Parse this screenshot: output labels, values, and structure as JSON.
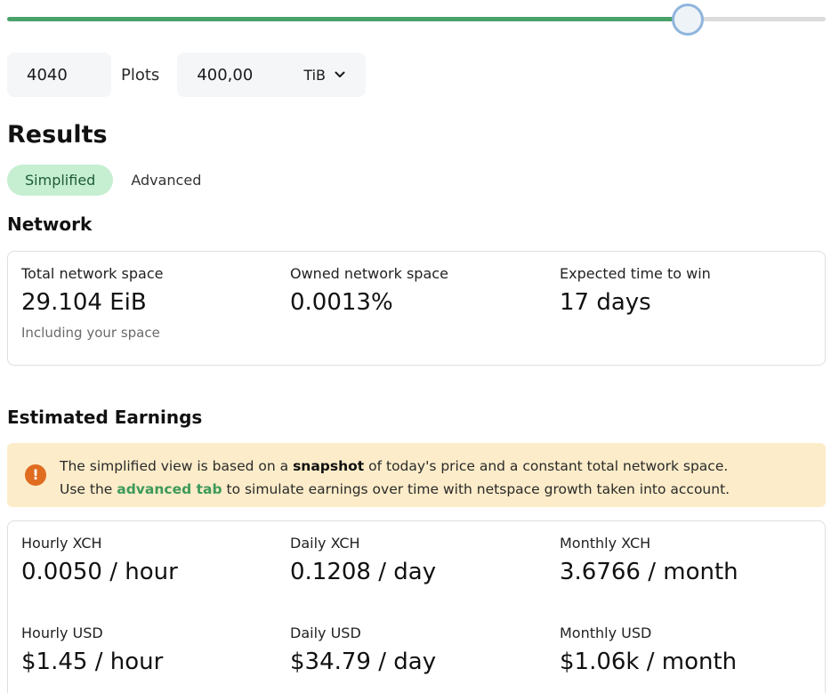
{
  "slider": {
    "value_fraction": 0.832
  },
  "inputs": {
    "plots_value": "4040",
    "plots_label": "Plots",
    "space_value": "400,00",
    "space_unit": "TiB"
  },
  "results": {
    "title": "Results",
    "tabs": [
      {
        "label": "Simplified",
        "active": true
      },
      {
        "label": "Advanced",
        "active": false
      }
    ]
  },
  "network": {
    "title": "Network",
    "stats": [
      {
        "label": "Total network space",
        "value": "29.104 EiB",
        "sub": "Including your space"
      },
      {
        "label": "Owned network space",
        "value": "0.0013%"
      },
      {
        "label": "Expected time to win",
        "value": "17 days"
      }
    ]
  },
  "earnings": {
    "title": "Estimated Earnings",
    "alert": {
      "line1_prefix": "The simplified view is based on a ",
      "line1_bold": "snapshot",
      "line1_suffix": " of today's price and a constant total network space.",
      "line2_prefix": "Use the ",
      "line2_link": "advanced tab",
      "line2_suffix": " to simulate earnings over time with netspace growth taken into account."
    },
    "stats": [
      {
        "label": "Hourly XCH",
        "value": "0.0050 / hour"
      },
      {
        "label": "Daily XCH",
        "value": "0.1208 / day"
      },
      {
        "label": "Monthly XCH",
        "value": "3.6766 / month"
      },
      {
        "label": "Hourly USD",
        "value": "$1.45 / hour"
      },
      {
        "label": "Daily USD",
        "value": "$34.79 / day"
      },
      {
        "label": "Monthly USD",
        "value": "$1.06k / month"
      }
    ]
  },
  "colors": {
    "accent_green": "#48a26a",
    "tab_active_bg": "#c6efd2",
    "alert_bg": "#fcecc9",
    "alert_icon": "#e06c20"
  },
  "icons": {
    "unit_dropdown": "chevron-down-icon",
    "alert": "exclamation-circle-icon"
  }
}
